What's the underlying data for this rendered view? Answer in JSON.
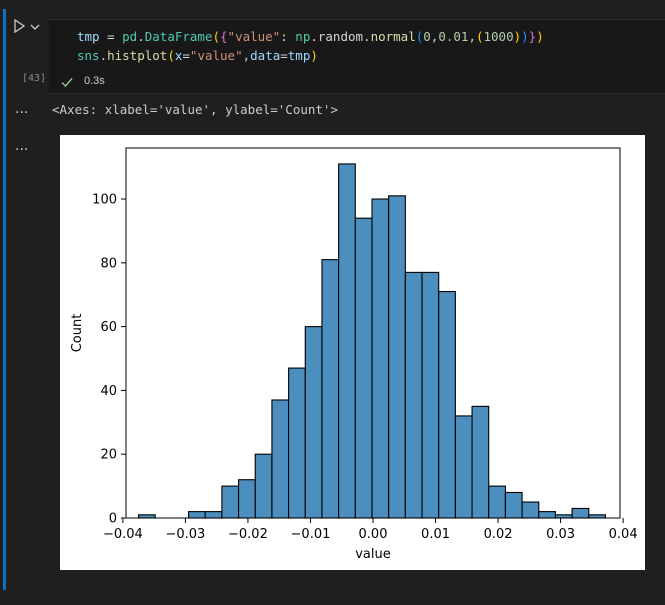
{
  "cell": {
    "execution_count": "[43]",
    "code_lines": [
      [
        {
          "t": "tmp",
          "c": "c-var"
        },
        {
          "t": " = ",
          "c": "c-op"
        },
        {
          "t": "pd",
          "c": "c-mod"
        },
        {
          "t": ".",
          "c": "c-op"
        },
        {
          "t": "DataFrame",
          "c": "c-mod"
        },
        {
          "t": "(",
          "c": "c-b1"
        },
        {
          "t": "{",
          "c": "c-b2"
        },
        {
          "t": "\"value\"",
          "c": "c-str"
        },
        {
          "t": ": ",
          "c": "c-op"
        },
        {
          "t": "np",
          "c": "c-mod"
        },
        {
          "t": ".random.",
          "c": "c-op"
        },
        {
          "t": "normal",
          "c": "c-fn"
        },
        {
          "t": "(",
          "c": "c-b3"
        },
        {
          "t": "0",
          "c": "c-num"
        },
        {
          "t": ",",
          "c": "c-op"
        },
        {
          "t": "0.01",
          "c": "c-num"
        },
        {
          "t": ",",
          "c": "c-op"
        },
        {
          "t": "(",
          "c": "c-b1"
        },
        {
          "t": "1000",
          "c": "c-num"
        },
        {
          "t": ")",
          "c": "c-b1"
        },
        {
          "t": ")",
          "c": "c-b3"
        },
        {
          "t": "}",
          "c": "c-b2"
        },
        {
          "t": ")",
          "c": "c-b1"
        }
      ],
      [
        {
          "t": "sns",
          "c": "c-mod"
        },
        {
          "t": ".",
          "c": "c-op"
        },
        {
          "t": "histplot",
          "c": "c-fn"
        },
        {
          "t": "(",
          "c": "c-b1"
        },
        {
          "t": "x",
          "c": "c-var"
        },
        {
          "t": "=",
          "c": "c-op"
        },
        {
          "t": "\"value\"",
          "c": "c-str"
        },
        {
          "t": ",",
          "c": "c-op"
        },
        {
          "t": "data",
          "c": "c-var"
        },
        {
          "t": "=",
          "c": "c-op"
        },
        {
          "t": "tmp",
          "c": "c-var"
        },
        {
          "t": ")",
          "c": "c-b1"
        }
      ]
    ],
    "status_time": "0.3s",
    "output_text": "<Axes: xlabel='value', ylabel='Count'>",
    "output_ellipsis": "..."
  },
  "chart_data": {
    "type": "bar",
    "title": "",
    "xlabel": "value",
    "ylabel": "Count",
    "xlim": [
      -0.0395,
      0.0395
    ],
    "ylim": [
      0,
      116
    ],
    "xticks": [
      -0.04,
      -0.03,
      -0.02,
      -0.01,
      0.0,
      0.01,
      0.02,
      0.03,
      0.04
    ],
    "xtick_labels": [
      "−0.04",
      "−0.03",
      "−0.02",
      "−0.01",
      "0.00",
      "0.01",
      "0.02",
      "0.03",
      "0.04"
    ],
    "yticks": [
      0,
      20,
      40,
      60,
      80,
      100
    ],
    "ytick_labels": [
      "0",
      "20",
      "40",
      "60",
      "80",
      "100"
    ],
    "bin_start": -0.0375,
    "bin_width": 0.002667,
    "counts": [
      1,
      0,
      0,
      2,
      2,
      10,
      12,
      20,
      37,
      47,
      60,
      81,
      111,
      94,
      100,
      101,
      77,
      77,
      71,
      32,
      35,
      10,
      8,
      5,
      2,
      1,
      3,
      1
    ],
    "bar_color": "#4c8fbf",
    "edge_color": "#000000",
    "grid": false
  }
}
